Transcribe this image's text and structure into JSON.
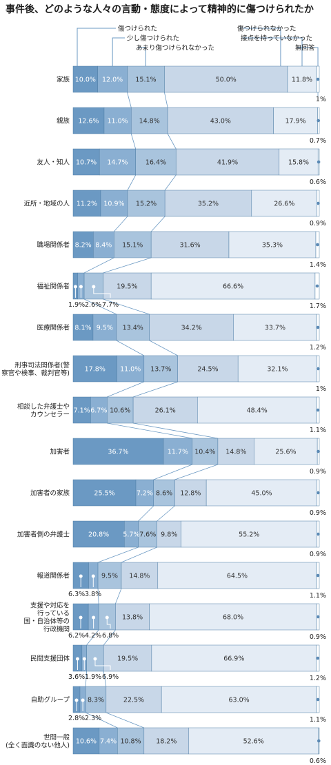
{
  "chart_data": {
    "type": "bar",
    "title": "事件後、どのような人々の言動・態度によって精神的に傷つけられたか",
    "legend": [
      "傷つけられた",
      "少し傷つけられた",
      "あまり傷つけられなかった",
      "傷つけられなかった",
      "接点を持っていなかった",
      "無回答"
    ],
    "colors": [
      "#6b99c3",
      "#8aafd2",
      "#a9c4dd",
      "#c8d7e8",
      "#e4ecf5",
      "#ffffff"
    ],
    "categories": [
      "家族",
      "親族",
      "友人・知人",
      "近所・地域の人",
      "職場関係者",
      "福祉関係者",
      "医療関係者",
      "刑事司法関係者(警察官や検事、裁判官等)",
      "相談した弁護士やカウンセラー",
      "加害者",
      "加害者の家族",
      "加害者側の弁護士",
      "報道関係者",
      "支援や対応を行っている国・自治体等の行政機関",
      "民間支援団体",
      "自助グループ",
      "世間一般(全く面識のない他人)"
    ],
    "category_lines": [
      [
        "家族"
      ],
      [
        "親族"
      ],
      [
        "友人・知人"
      ],
      [
        "近所・地域の人"
      ],
      [
        "職場関係者"
      ],
      [
        "福祉関係者"
      ],
      [
        "医療関係者"
      ],
      [
        "刑事司法関係者(警",
        "察官や検事、裁判官等)"
      ],
      [
        "相談した弁護士や",
        "カウンセラー"
      ],
      [
        "加害者"
      ],
      [
        "加害者の家族"
      ],
      [
        "加害者側の弁護士"
      ],
      [
        "報道関係者"
      ],
      [
        "支援や対応を",
        "行っている",
        "国・自治体等の",
        "行政機関"
      ],
      [
        "民間支援団体"
      ],
      [
        "自助グループ"
      ],
      [
        "世間一般",
        "(全く面識のない他人)"
      ]
    ],
    "series": [
      {
        "name": "傷つけられた",
        "values": [
          10.0,
          12.6,
          10.7,
          11.2,
          8.2,
          1.9,
          8.1,
          17.8,
          7.1,
          36.7,
          25.5,
          20.8,
          6.3,
          6.2,
          3.6,
          2.8,
          10.6
        ]
      },
      {
        "name": "少し傷つけられた",
        "values": [
          12.0,
          11.0,
          14.7,
          10.9,
          8.4,
          2.6,
          9.5,
          11.0,
          6.7,
          11.7,
          7.2,
          5.7,
          3.8,
          4.2,
          1.9,
          2.3,
          7.4
        ]
      },
      {
        "name": "あまり傷つけられなかった",
        "values": [
          15.1,
          14.8,
          16.4,
          15.2,
          15.1,
          7.7,
          13.4,
          13.7,
          10.6,
          10.4,
          8.6,
          7.6,
          9.5,
          6.8,
          6.9,
          8.3,
          10.8
        ]
      },
      {
        "name": "傷つけられなかった",
        "values": [
          50.0,
          43.0,
          41.9,
          35.2,
          31.6,
          19.5,
          34.2,
          24.5,
          26.1,
          14.8,
          12.8,
          9.8,
          14.8,
          13.8,
          19.5,
          22.5,
          18.2
        ]
      },
      {
        "name": "接点を持っていなかった",
        "values": [
          11.8,
          17.9,
          15.8,
          26.6,
          35.3,
          66.6,
          33.7,
          32.1,
          48.4,
          25.6,
          45.0,
          55.2,
          64.5,
          68.0,
          66.9,
          63.0,
          52.6
        ]
      },
      {
        "name": "無回答",
        "values": [
          1.0,
          0.7,
          0.6,
          0.9,
          1.4,
          1.7,
          1.2,
          1.0,
          1.1,
          0.9,
          0.9,
          0.9,
          1.1,
          0.9,
          1.2,
          1.1,
          0.6
        ]
      }
    ],
    "labels": [
      [
        "10.0%",
        "12.0%",
        "15.1%",
        "50.0%",
        "11.8%",
        "1%"
      ],
      [
        "12.6%",
        "11.0%",
        "14.8%",
        "43.0%",
        "17.9%",
        "0.7%"
      ],
      [
        "10.7%",
        "14.7%",
        "16.4%",
        "41.9%",
        "15.8%",
        "0.6%"
      ],
      [
        "11.2%",
        "10.9%",
        "15.2%",
        "35.2%",
        "26.6%",
        "0.9%"
      ],
      [
        "8.2%",
        "8.4%",
        "15.1%",
        "31.6%",
        "35.3%",
        "1.4%"
      ],
      [
        "1.9%",
        "2.6%",
        "7.7%",
        "19.5%",
        "66.6%",
        "1.7%"
      ],
      [
        "8.1%",
        "9.5%",
        "13.4%",
        "34.2%",
        "33.7%",
        "1.2%"
      ],
      [
        "17.8%",
        "11.0%",
        "13.7%",
        "24.5%",
        "32.1%",
        "1%"
      ],
      [
        "7.1%",
        "6.7%",
        "10.6%",
        "26.1%",
        "48.4%",
        "1.1%"
      ],
      [
        "36.7%",
        "11.7%",
        "10.4%",
        "14.8%",
        "25.6%",
        "0.9%"
      ],
      [
        "25.5%",
        "7.2%",
        "8.6%",
        "12.8%",
        "45.0%",
        "0.9%"
      ],
      [
        "20.8%",
        "5.7%",
        "7.6%",
        "9.8%",
        "55.2%",
        "0.9%"
      ],
      [
        "6.3%",
        "3.8%",
        "9.5%",
        "14.8%",
        "64.5%",
        "1.1%"
      ],
      [
        "6.2%",
        "4.2%",
        "6.8%",
        "13.8%",
        "68.0%",
        "0.9%"
      ],
      [
        "3.6%",
        "1.9%",
        "6.9%",
        "19.5%",
        "66.9%",
        "1.2%"
      ],
      [
        "2.8%",
        "2.3%",
        "8.3%",
        "22.5%",
        "63.0%",
        "1.1%"
      ],
      [
        "10.6%",
        "7.4%",
        "10.8%",
        "18.2%",
        "52.6%",
        "0.6%"
      ]
    ],
    "outside_label_segments": [
      [],
      [],
      [],
      [],
      [],
      [
        0,
        1,
        2
      ],
      [],
      [],
      [],
      [],
      [],
      [],
      [
        0,
        1
      ],
      [
        0,
        1,
        2
      ],
      [
        0,
        1,
        2
      ],
      [
        0,
        1
      ],
      []
    ],
    "xlim": [
      0,
      100
    ]
  }
}
